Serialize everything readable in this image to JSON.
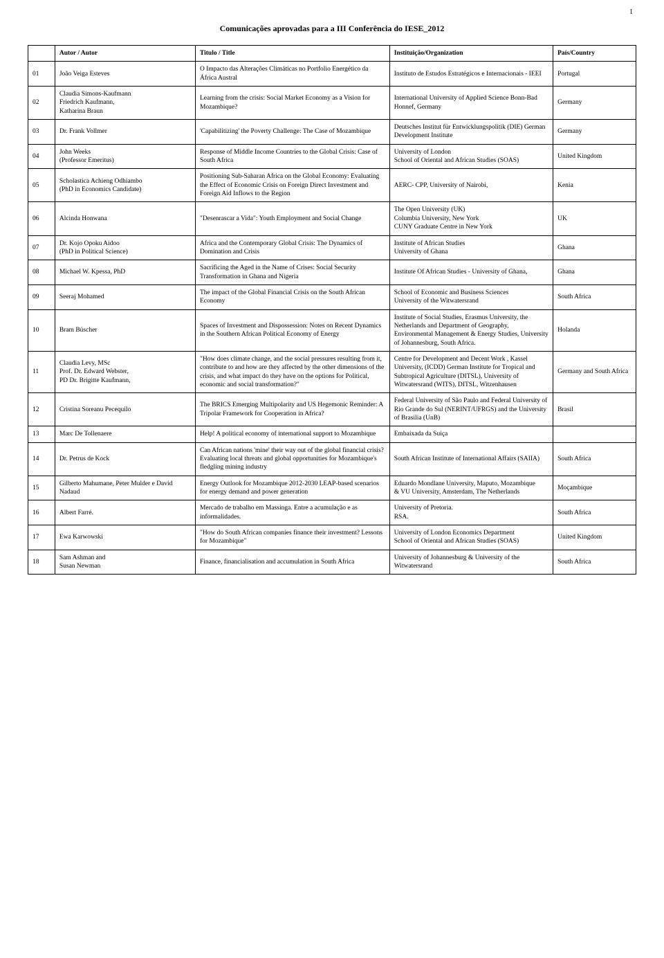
{
  "pageNumber": "1",
  "mainTitle": "Comunicações aprovadas para a III Conferência do IESE_2012",
  "headers": {
    "num": "",
    "author": "Autor / Autor",
    "title": "Titulo / Title",
    "institution": "Instituição/Organization",
    "country": "País/Country"
  },
  "rows": [
    {
      "n": "01",
      "author": "João Veiga Esteves",
      "title": "O Impacto das Alterações Climáticas no Portfolio Energético da África Austral",
      "inst": "Instituto de Estudos Estratégicos e Internacionais - IEEI",
      "country": "Portugal"
    },
    {
      "n": "02",
      "author": "Claudia Simons-Kaufmann\nFriedrich Kaufmann,\nKatharina Braun",
      "title": "Learning from the crisis: Social Market Economy as a Vision for Mozambique?",
      "inst": "International University of Applied Science Bonn-Bad Honnef, Germany",
      "country": "Germany"
    },
    {
      "n": "03",
      "author": "Dr. Frank Vollmer",
      "title": "'Capabilitizing' the Poverty Challenge: The Case of Mozambique",
      "inst": "Deutsches Institut für Entwicklungspolitik (DIE) German Development Institute",
      "country": "Germany"
    },
    {
      "n": "04",
      "author": "John Weeks\n(Professor Emeritus)",
      "title": "Response of Middle Income Countries to the Global Crisis: Case of South Africa",
      "inst": "University of London\nSchool of Oriental and African Studies (SOAS)",
      "country": "United Kingdom"
    },
    {
      "n": "05",
      "author": "Scholastica Achieng Odhiambo\n(PhD in Economics Candidate)",
      "title": "Positioning Sub-Saharan Africa on the Global Economy: Evaluating the Effect of Economic Crisis on Foreign Direct Investment and Foreign Aid Inflows to the Region",
      "inst": "AERC- CPP, University of Nairobi,",
      "country": "Kenia"
    },
    {
      "n": "06",
      "author": "Alcinda Honwana",
      "title": "\"Desenrascar a Vida\": Youth Employment and Social Change",
      "inst": "The Open University (UK)\nColumbia University, New York\nCUNY Graduate Centre in New York",
      "country": "UK"
    },
    {
      "n": "07",
      "author": "Dr. Kojo Opoku Aidoo\n(PhD in Political Science)",
      "title": "Africa and the Contemporary Global Crisis: The Dynamics of Domination and Crisis",
      "inst": "Institute of African Studies\nUniversity of Ghana",
      "country": "Ghana"
    },
    {
      "n": "08",
      "author": "Michael W. Kpessa, PhD",
      "title": "Sacrificing the Aged in the Name of Crises: Social Security Transformation in Ghana and Nigeria",
      "inst": "Institute Of African Studies - University of Ghana,",
      "country": "Ghana"
    },
    {
      "n": "09",
      "author": "Seeraj Mohamed",
      "title": "The impact of the Global Financial Crisis on the South African Economy",
      "inst": "School of Economic and Business Sciences\nUniversity of the Witwatersrand",
      "country": "South Africa"
    },
    {
      "n": "10",
      "author": "Bram Büscher",
      "title": "Spaces of Investment and Dispossession: Notes on Recent Dynamics in the Southern African Political Economy of Energy",
      "inst": "Institute of Social Studies, Erasmus University, the Netherlands and Department of Geography, Environmental Management & Energy Studies, University of Johannesburg, South Africa.",
      "country": "Holanda"
    },
    {
      "n": "11",
      "author": "Claudia Levy, MSc\nProf. Dr. Edward Webster,\nPD Dr. Brigitte Kaufmann,",
      "title": "\"How does climate change, and the social pressures resulting from it, contribute to and how are they affected by the other dimensions of the crisis, and what impact do they have on the options for Political, economic and social transformation?\"",
      "inst": "Centre for Development and Decent Work , Kassel University, (ICDD) German Institute for Tropical and Subtropical Agriculture (DITSL), University of Witwatersrand (WITS), DITSL, Witzenhausen",
      "country": "Germany and South Africa"
    },
    {
      "n": "12",
      "author": "Cristina Soreanu Pecequilo",
      "title": "The BRICS Emerging Multipolarity and US Hegemonic Reminder: A Tripolar Framework for Cooperation in Africa?",
      "inst": "Federal University of São Paulo and Federal University of Rio Grande do Sul (NERINT/UFRGS) and the University of Brasilia (UnB)",
      "country": "Brasil"
    },
    {
      "n": "13",
      "author": "Marc De Tollenaere",
      "title": "Help! A political economy of international support to Mozambique",
      "inst": "Embaixada da Suiça",
      "country": ""
    },
    {
      "n": "14",
      "author": "Dr. Petrus de Kock",
      "title": "Can African nations 'mine' their way out of the global financial crisis? Evaluating local threats and global opportunities for Mozambique's fledgling mining industry",
      "inst": "South African Institute of International Affairs (SAIIA)",
      "country": "South Africa"
    },
    {
      "n": "15",
      "author": "Gilberto Mahumane, Peter Mulder e David Nadaud",
      "title": "Energy Outlook for Mozambique 2012-2030 LEAP-based scenarios for energy demand and power generation",
      "inst": "Eduardo Mondlane University, Maputo, Mozambique\n& VU University, Amsterdam, The Netherlands",
      "country": "Moçambique"
    },
    {
      "n": "16",
      "author": "Albert Farré.",
      "title": "Mercado de trabalho em Massinga. Entre a acumulação e as informalidades.",
      "inst": "University of Pretoria.\nRSA.",
      "country": "South Africa"
    },
    {
      "n": "17",
      "author": "Ewa Karwowski",
      "title": "\"How do South African companies finance their investment? Lessons for Mozambique\"",
      "inst": "University of London Economics Department\nSchool of Oriental and African Studies (SOAS)",
      "country": "United Kingdom"
    },
    {
      "n": "18",
      "author": "Sam Ashman and\nSusan Newman",
      "title": "Finance, financialisation and accumulation in South Africa",
      "inst": "University of Johannesburg & University of the Witwatersrand",
      "country": "South Africa"
    }
  ]
}
